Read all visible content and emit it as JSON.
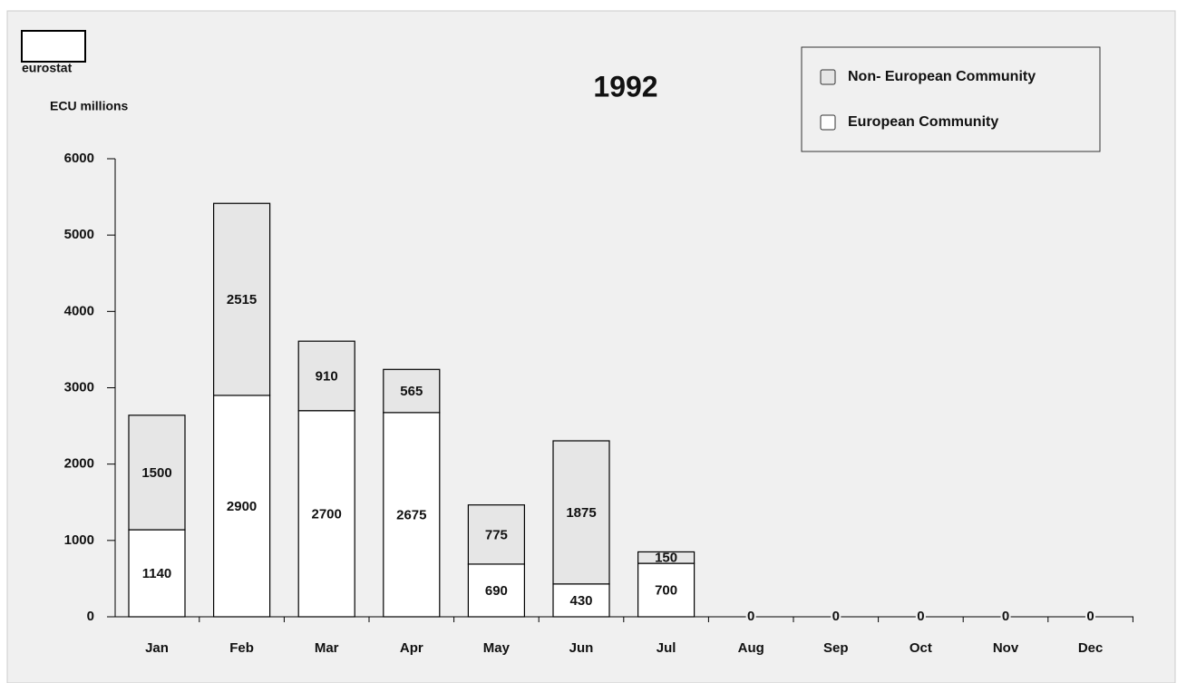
{
  "chart_data": {
    "type": "stacked_bar",
    "title": "1992",
    "logo_text": "eurostat",
    "ylabel": "ECU millions",
    "categories": [
      "Jan",
      "Feb",
      "Mar",
      "Apr",
      "May",
      "Jun",
      "Jul",
      "Aug",
      "Sep",
      "Oct",
      "Nov",
      "Dec"
    ],
    "series": [
      {
        "name": "European Community",
        "color": "#ffffff",
        "values": [
          1140,
          2900,
          2700,
          2675,
          690,
          430,
          700,
          0,
          0,
          0,
          0,
          0
        ]
      },
      {
        "name": "Non- European Community",
        "color": "#e6e6e6",
        "values": [
          1500,
          2515,
          910,
          565,
          775,
          1875,
          150,
          0,
          0,
          0,
          0,
          0
        ]
      }
    ],
    "ylim": [
      0,
      6000
    ],
    "yticks": [
      0,
      1000,
      2000,
      3000,
      4000,
      5000,
      6000
    ],
    "legend": "upper right"
  }
}
